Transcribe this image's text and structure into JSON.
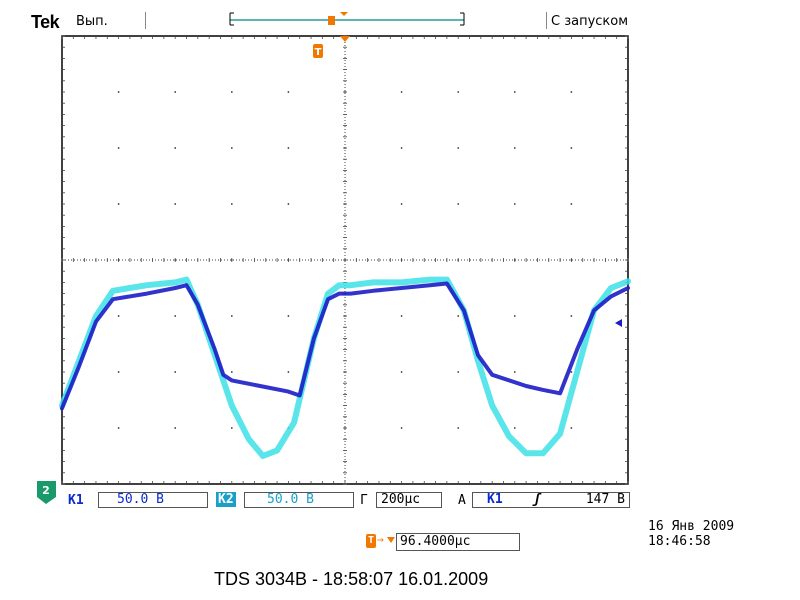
{
  "header": {
    "brand": "Tek",
    "acq_status": "Вып.",
    "trigger_status": "С запуском"
  },
  "bottom_bar": {
    "ch1_label": "К1",
    "ch1_scale": "50.0 В",
    "ch2_label": "К2",
    "ch2_scale": "50.0 В",
    "timebase_label": "Г",
    "timebase": "200µс",
    "trigger_label": "А",
    "trigger_source": "К1",
    "trigger_slope_symbol": "ʃ",
    "trigger_level": "147 В"
  },
  "ground_marker": "2",
  "trigger_marker": "T",
  "delay": {
    "icon_text": "T",
    "arrow": "→",
    "value": "96.4000µс"
  },
  "instrument_datetime": {
    "date": "16 Янв 2009",
    "time": "18:46:58"
  },
  "caption": "TDS 3034B - 18:58:07   16.01.2009",
  "colors": {
    "ch1": "#1c1cc8",
    "ch2": "#3ce1e6",
    "trigger_orange": "#f07800",
    "frame": "#000000",
    "grid_dot": "#333333",
    "status_blue": "#0a2bd0"
  },
  "chart_data": {
    "type": "line",
    "title": "",
    "xlabel": "",
    "ylabel": "",
    "x_divisions": 10,
    "y_divisions": 8,
    "timebase_per_div": "200µс",
    "volts_per_div": "50.0 В",
    "xlim": [
      0,
      10
    ],
    "ylim": [
      0,
      8
    ],
    "grid": true,
    "legend": "none",
    "series": [
      {
        "name": "К1",
        "color": "#1c1cc8",
        "x": [
          0.0,
          0.3,
          0.6,
          0.9,
          1.5,
          2.0,
          2.2,
          2.4,
          2.7,
          2.85,
          3.0,
          3.5,
          4.0,
          4.2,
          4.45,
          4.7,
          4.9,
          5.1,
          5.5,
          6.0,
          6.5,
          6.8,
          7.1,
          7.35,
          7.6,
          7.9,
          8.2,
          8.5,
          8.8,
          9.1,
          9.4,
          9.7,
          10.0
        ],
        "y": [
          1.35,
          2.1,
          2.9,
          3.3,
          3.4,
          3.5,
          3.55,
          3.2,
          2.4,
          1.95,
          1.85,
          1.75,
          1.65,
          1.58,
          2.6,
          3.3,
          3.4,
          3.4,
          3.45,
          3.5,
          3.55,
          3.58,
          3.1,
          2.3,
          1.95,
          1.85,
          1.75,
          1.68,
          1.62,
          2.4,
          3.1,
          3.35,
          3.5
        ]
      },
      {
        "name": "К2",
        "color": "#3ce1e6",
        "x": [
          0.0,
          0.3,
          0.6,
          0.9,
          1.5,
          2.0,
          2.2,
          2.4,
          2.7,
          3.0,
          3.3,
          3.55,
          3.8,
          4.1,
          4.45,
          4.7,
          4.9,
          5.1,
          5.5,
          6.0,
          6.5,
          6.8,
          7.1,
          7.35,
          7.6,
          7.9,
          8.2,
          8.5,
          8.8,
          9.1,
          9.4,
          9.7,
          10.0
        ],
        "y": [
          1.4,
          2.2,
          3.0,
          3.45,
          3.55,
          3.6,
          3.65,
          3.2,
          2.3,
          1.4,
          0.8,
          0.5,
          0.6,
          1.1,
          2.6,
          3.4,
          3.55,
          3.55,
          3.6,
          3.6,
          3.65,
          3.65,
          3.1,
          2.2,
          1.4,
          0.85,
          0.55,
          0.55,
          0.9,
          2.0,
          3.1,
          3.5,
          3.62
        ]
      }
    ]
  }
}
